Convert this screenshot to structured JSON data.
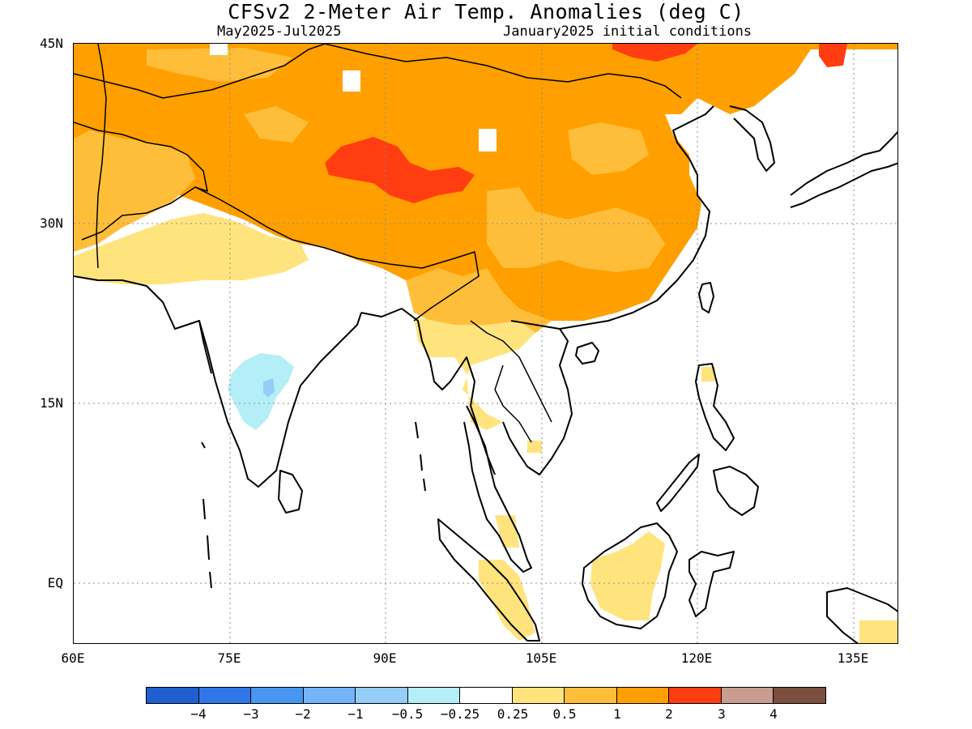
{
  "title": "CFSv2 2-Meter Air Temp. Anomalies (deg C)",
  "subtitle_left": "May2025-Jul2025",
  "subtitle_right": "January2025 initial conditions",
  "map": {
    "region": "South and East Asia",
    "lon_range": [
      60,
      141
    ],
    "lat_range": [
      -6,
      45
    ],
    "lat_ticks": [
      "45N",
      "30N",
      "15N",
      "EQ"
    ],
    "lon_ticks": [
      "60E",
      "75E",
      "90E",
      "105E",
      "120E",
      "135E"
    ],
    "gridlines": "dotted"
  },
  "colorbar": {
    "colors": [
      "#1f5fcf",
      "#2f76e8",
      "#4796f2",
      "#75b4f6",
      "#95ccf8",
      "#b4eef7",
      "#ffffff",
      "#ffe47e",
      "#ffbe3a",
      "#ff9f00",
      "#ff3d10",
      "#c89c8e",
      "#7a4f3e"
    ],
    "labels": [
      "-4",
      "-3",
      "-2",
      "-1",
      "-0.5",
      "-0.25",
      "0.25",
      "0.5",
      "1",
      "2",
      "3",
      "4"
    ]
  }
}
